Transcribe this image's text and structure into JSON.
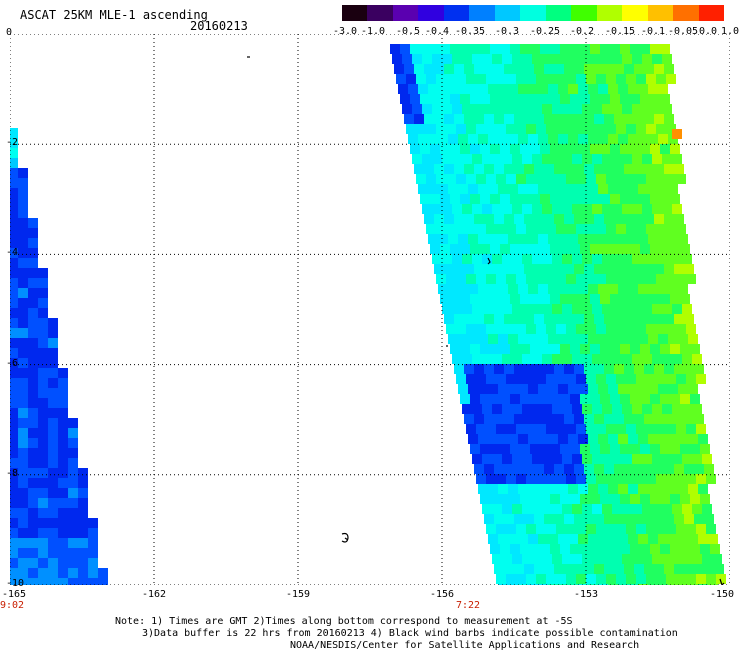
{
  "header": {
    "title": "ASCAT 25KM MLE-1 ascending",
    "date": "20160213"
  },
  "colorbar": {
    "ticks": [
      "-3.0",
      "-1.0",
      "-0.5",
      "-0.4",
      "-0.35",
      "-0.3",
      "-0.25",
      "-0.2",
      "-0.15",
      "-0.1",
      "-0.05",
      "0.0",
      "1.0"
    ],
    "colors": [
      "#1a0010",
      "#3a0060",
      "#5a00b0",
      "#3000e0",
      "#0030f0",
      "#0080ff",
      "#00c8ff",
      "#00ffe0",
      "#00ff80",
      "#40ff00",
      "#b0ff00",
      "#ffff00",
      "#ffc000",
      "#ff7000",
      "#ff2000"
    ]
  },
  "map": {
    "lon_range": [
      -165,
      -150
    ],
    "lat_range": [
      -10,
      0
    ],
    "x_ticks": [
      "-165",
      "-162",
      "-159",
      "-156",
      "-153",
      "-150"
    ],
    "y_ticks": [
      "0",
      "-2",
      "-4",
      "-6",
      "-8",
      "-10"
    ],
    "pass_times": [
      {
        "time": "9:02",
        "lon": -165
      },
      {
        "time": "7:22",
        "lon": -155.5
      }
    ]
  },
  "notes": {
    "line1": "Note: 1) Times are GMT 2)Times along bottom correspond to measurement at -5S",
    "line2": "3)Data buffer is 22 hrs from 20160213 4) Black wind barbs indicate possible contamination",
    "line3": "NOAA/NESDIS/Center for Satellite Applications and Research"
  }
}
